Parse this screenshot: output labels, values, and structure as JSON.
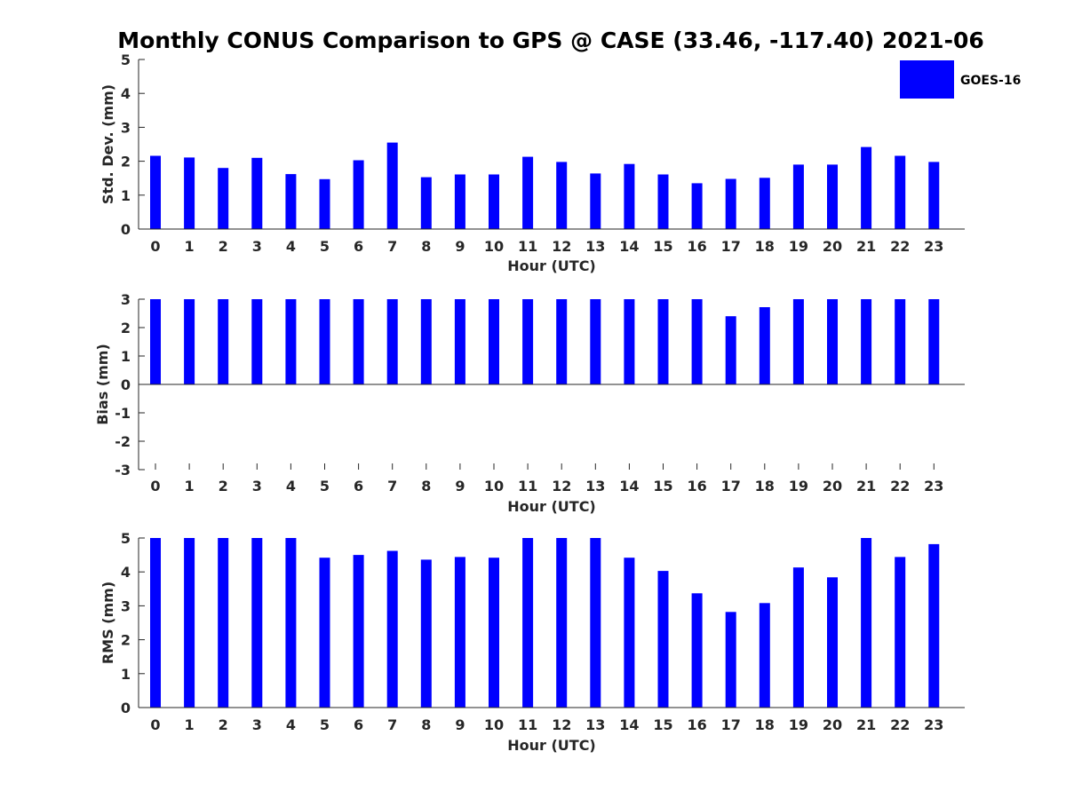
{
  "colors": {
    "bar": "#0000ff",
    "axis": "#262626",
    "text": "#262626",
    "background": "#ffffff"
  },
  "title": "Monthly CONUS Comparison to GPS @ CASE (33.46, -117.40) 2021-06",
  "legend": {
    "label": "GOES-16",
    "placement": "top-right"
  },
  "chart_data": [
    {
      "type": "bar",
      "name": "std",
      "title": "Monthly CONUS Comparison to GPS @ CASE (33.46, -117.40) 2021-06",
      "xlabel": "Hour (UTC)",
      "ylabel": "Std. Dev. (mm)",
      "ylim": [
        0,
        5
      ],
      "yticks": [
        0,
        1,
        2,
        3,
        4,
        5
      ],
      "categories": [
        "0",
        "1",
        "2",
        "3",
        "4",
        "5",
        "6",
        "7",
        "8",
        "9",
        "10",
        "11",
        "12",
        "13",
        "14",
        "15",
        "16",
        "17",
        "18",
        "19",
        "20",
        "21",
        "22",
        "23"
      ],
      "series": [
        {
          "name": "GOES-16",
          "values": [
            2.16,
            2.11,
            1.8,
            2.1,
            1.62,
            1.47,
            2.03,
            2.55,
            1.53,
            1.61,
            1.61,
            2.13,
            1.98,
            1.64,
            1.92,
            1.61,
            1.35,
            1.48,
            1.51,
            1.9,
            1.9,
            2.42,
            2.16,
            1.98
          ]
        }
      ]
    },
    {
      "type": "bar",
      "name": "bias",
      "xlabel": "Hour (UTC)",
      "ylabel": "Bias (mm)",
      "ylim": [
        -3,
        3
      ],
      "yticks": [
        -3,
        -2,
        -1,
        0,
        1,
        2,
        3
      ],
      "categories": [
        "0",
        "1",
        "2",
        "3",
        "4",
        "5",
        "6",
        "7",
        "8",
        "9",
        "10",
        "11",
        "12",
        "13",
        "14",
        "15",
        "16",
        "17",
        "18",
        "19",
        "20",
        "21",
        "22",
        "23"
      ],
      "series": [
        {
          "name": "GOES-16",
          "values": [
            3,
            3,
            3,
            3,
            3,
            3,
            3,
            3,
            3,
            3,
            3,
            3,
            3,
            3,
            3,
            3,
            3,
            2.4,
            2.72,
            3,
            3,
            3,
            3,
            3
          ]
        }
      ]
    },
    {
      "type": "bar",
      "name": "rms",
      "xlabel": "Hour (UTC)",
      "ylabel": "RMS (mm)",
      "ylim": [
        0,
        5
      ],
      "yticks": [
        0,
        1,
        2,
        3,
        4,
        5
      ],
      "categories": [
        "0",
        "1",
        "2",
        "3",
        "4",
        "5",
        "6",
        "7",
        "8",
        "9",
        "10",
        "11",
        "12",
        "13",
        "14",
        "15",
        "16",
        "17",
        "18",
        "19",
        "20",
        "21",
        "22",
        "23"
      ],
      "series": [
        {
          "name": "GOES-16",
          "values": [
            5,
            5,
            5,
            5,
            5,
            4.42,
            4.5,
            4.62,
            4.36,
            4.44,
            4.42,
            5,
            5,
            5,
            4.42,
            4.03,
            3.37,
            2.82,
            3.08,
            4.13,
            3.84,
            5,
            4.44,
            4.82
          ]
        }
      ]
    }
  ]
}
